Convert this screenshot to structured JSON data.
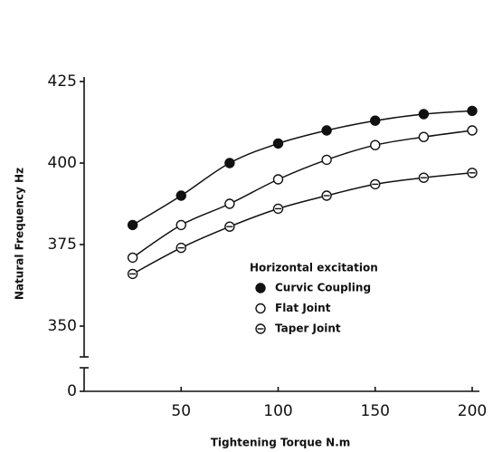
{
  "chart_data": {
    "type": "line",
    "x_label": "Tightening Torque  N.m",
    "y_label": "Natural Frequency  Hz",
    "legend_title": "Horizontal excitation",
    "x": [
      25,
      50,
      75,
      100,
      125,
      150,
      175,
      200
    ],
    "series": [
      {
        "name": "Curvic Coupling",
        "color": "#111111",
        "marker": "filled",
        "values": [
          381,
          390,
          400,
          406,
          410,
          413,
          415,
          416
        ]
      },
      {
        "name": "Flat Joint",
        "color": "#111111",
        "marker": "open",
        "values": [
          371,
          381,
          387.5,
          395,
          401,
          405.5,
          408,
          410
        ]
      },
      {
        "name": "Taper Joint",
        "color": "#111111",
        "marker": "dotted",
        "values": [
          366,
          374,
          380.5,
          386,
          390,
          393.5,
          395.5,
          397
        ]
      }
    ],
    "xlim": [
      0,
      200
    ],
    "xticks": [
      50,
      100,
      150,
      200
    ],
    "ylim": [
      340,
      425
    ],
    "yticks": [
      0,
      350,
      375,
      400,
      425
    ],
    "axis_break": true,
    "grid": false
  }
}
